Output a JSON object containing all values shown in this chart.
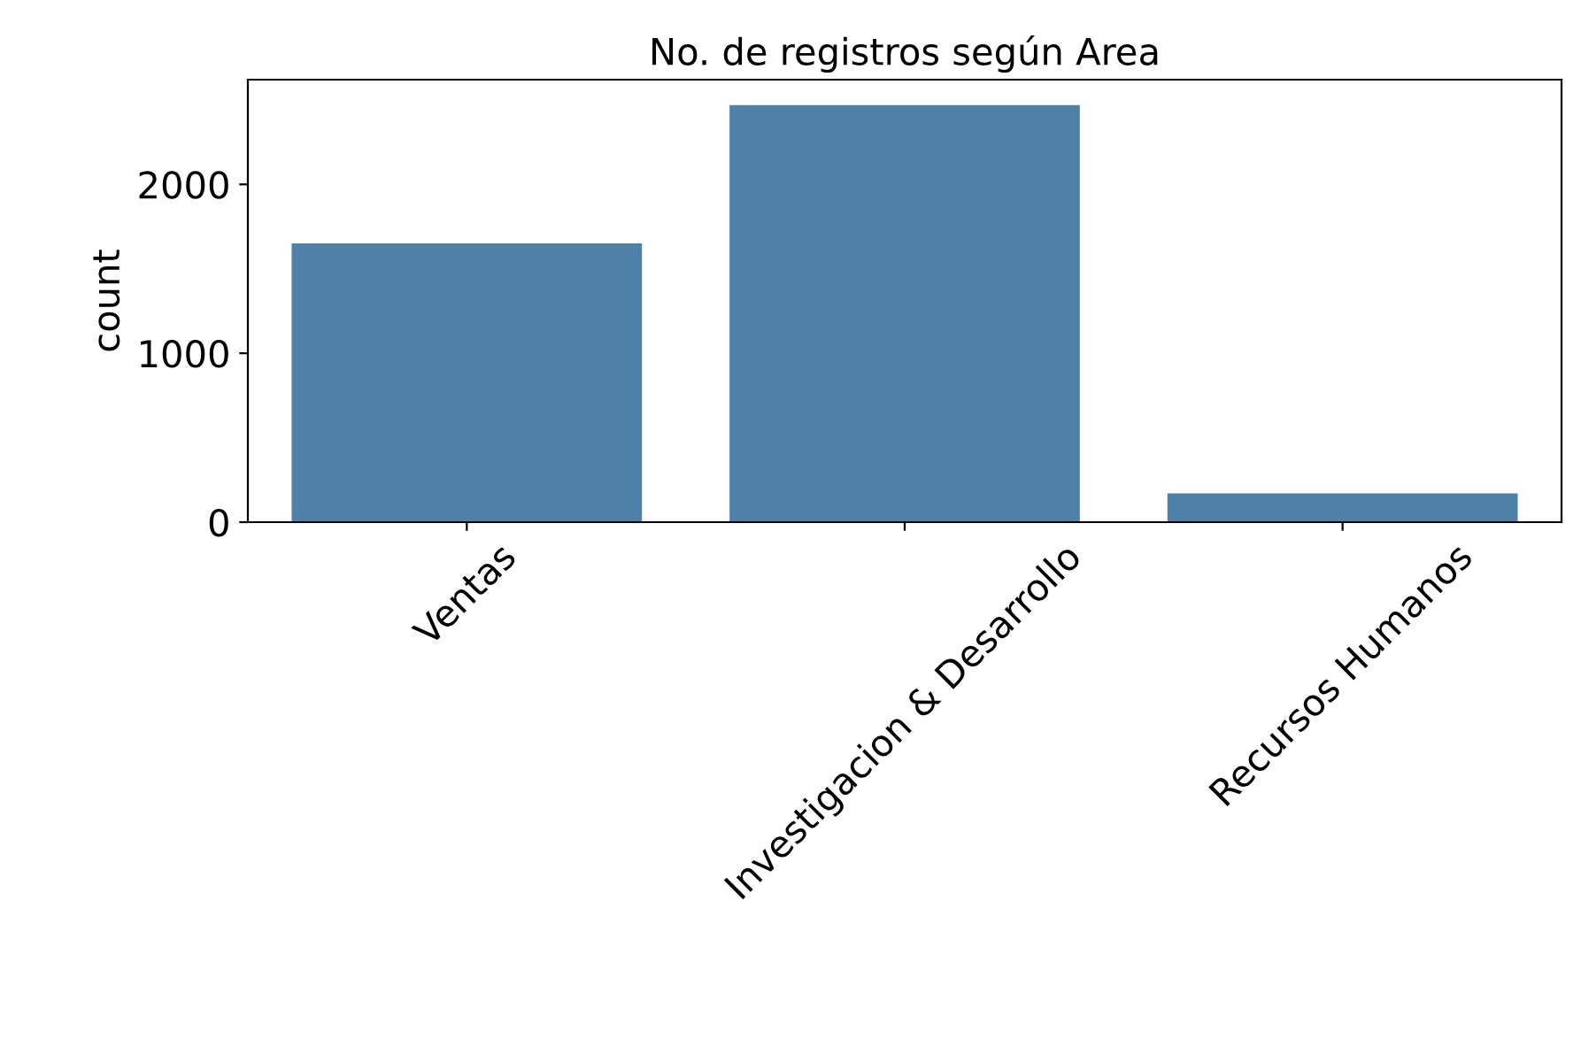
{
  "chart_data": {
    "type": "bar",
    "title": "No. de registros según Area",
    "ylabel": "count",
    "categories": [
      "Ventas",
      "Investigacion & Desarrollo",
      "Recursos Humanos"
    ],
    "values": [
      1650,
      2470,
      170
    ],
    "color": "#4e80a8",
    "ylim": [
      0,
      2620
    ],
    "yticks": [
      0,
      1000,
      2000
    ],
    "grid": false
  }
}
